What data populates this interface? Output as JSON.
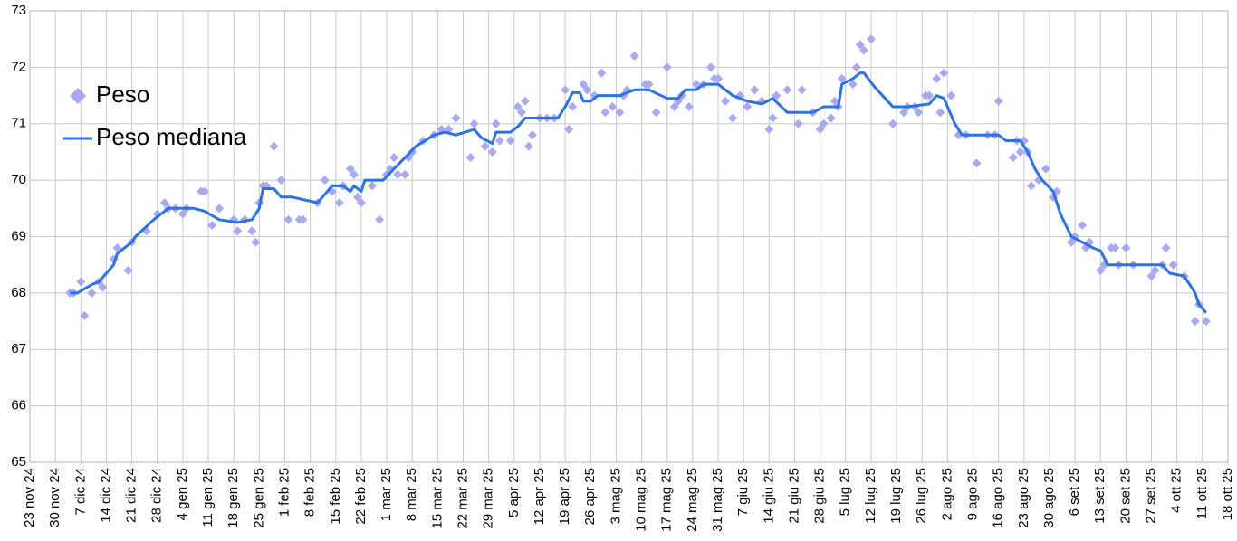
{
  "chart_data": {
    "type": "scatter",
    "xlim": [
      "2024-11-23",
      "2025-10-18"
    ],
    "ylim": [
      65,
      73
    ],
    "yticks": [
      65,
      66,
      67,
      68,
      69,
      70,
      71,
      72,
      73
    ],
    "xticks": [
      {
        "value": "2024-11-23",
        "label": "23 nov 24"
      },
      {
        "value": "2024-11-30",
        "label": "30 nov 24"
      },
      {
        "value": "2024-12-07",
        "label": "7 dic 24"
      },
      {
        "value": "2024-12-14",
        "label": "14 dic 24"
      },
      {
        "value": "2024-12-21",
        "label": "21 dic 24"
      },
      {
        "value": "2024-12-28",
        "label": "28 dic 24"
      },
      {
        "value": "2025-01-04",
        "label": "4 gen 25"
      },
      {
        "value": "2025-01-11",
        "label": "11 gen 25"
      },
      {
        "value": "2025-01-18",
        "label": "18 gen 25"
      },
      {
        "value": "2025-01-25",
        "label": "25 gen 25"
      },
      {
        "value": "2025-02-01",
        "label": "1 feb 25"
      },
      {
        "value": "2025-02-08",
        "label": "8 feb 25"
      },
      {
        "value": "2025-02-15",
        "label": "15 feb 25"
      },
      {
        "value": "2025-02-22",
        "label": "22 feb 25"
      },
      {
        "value": "2025-03-01",
        "label": "1 mar 25"
      },
      {
        "value": "2025-03-08",
        "label": "8 mar 25"
      },
      {
        "value": "2025-03-15",
        "label": "15 mar 25"
      },
      {
        "value": "2025-03-22",
        "label": "22 mar 25"
      },
      {
        "value": "2025-03-29",
        "label": "29 mar 25"
      },
      {
        "value": "2025-04-05",
        "label": "5 apr 25"
      },
      {
        "value": "2025-04-12",
        "label": "12 apr 25"
      },
      {
        "value": "2025-04-19",
        "label": "19 apr 25"
      },
      {
        "value": "2025-04-26",
        "label": "26 apr 25"
      },
      {
        "value": "2025-05-03",
        "label": "3 mag 25"
      },
      {
        "value": "2025-05-10",
        "label": "10 mag 25"
      },
      {
        "value": "2025-05-17",
        "label": "17 mag 25"
      },
      {
        "value": "2025-05-24",
        "label": "24 mag 25"
      },
      {
        "value": "2025-05-31",
        "label": "31 mag 25"
      },
      {
        "value": "2025-06-07",
        "label": "7 giu 25"
      },
      {
        "value": "2025-06-14",
        "label": "14 giu 25"
      },
      {
        "value": "2025-06-21",
        "label": "21 giu 25"
      },
      {
        "value": "2025-06-28",
        "label": "28 giu 25"
      },
      {
        "value": "2025-07-05",
        "label": "5 lug 25"
      },
      {
        "value": "2025-07-12",
        "label": "12 lug 25"
      },
      {
        "value": "2025-07-19",
        "label": "19 lug 25"
      },
      {
        "value": "2025-07-26",
        "label": "26 lug 25"
      },
      {
        "value": "2025-08-02",
        "label": "2 ago 25"
      },
      {
        "value": "2025-08-09",
        "label": "9 ago 25"
      },
      {
        "value": "2025-08-16",
        "label": "16 ago 25"
      },
      {
        "value": "2025-08-23",
        "label": "23 ago 25"
      },
      {
        "value": "2025-08-30",
        "label": "30 ago 25"
      },
      {
        "value": "2025-09-06",
        "label": "6 set 25"
      },
      {
        "value": "2025-09-13",
        "label": "13 set 25"
      },
      {
        "value": "2025-09-20",
        "label": "20 set 25"
      },
      {
        "value": "2025-09-27",
        "label": "27 set 25"
      },
      {
        "value": "2025-10-04",
        "label": "4 ott 25"
      },
      {
        "value": "2025-10-11",
        "label": "11 ott 25"
      },
      {
        "value": "2025-10-18",
        "label": "18 ott 25"
      }
    ],
    "grid": true,
    "legend": "left",
    "series": [
      {
        "name": "Peso",
        "type": "scatter",
        "color": "#a9a9f2",
        "x": [
          "2024-12-04",
          "2024-12-05",
          "2024-12-07",
          "2024-12-08",
          "2024-12-10",
          "2024-12-12",
          "2024-12-13",
          "2024-12-16",
          "2024-12-17",
          "2024-12-20",
          "2024-12-21",
          "2024-12-25",
          "2024-12-28",
          "2024-12-30",
          "2024-12-31",
          "2025-01-02",
          "2025-01-04",
          "2025-01-05",
          "2025-01-09",
          "2025-01-10",
          "2025-01-12",
          "2025-01-14",
          "2025-01-18",
          "2025-01-19",
          "2025-01-21",
          "2025-01-23",
          "2025-01-24",
          "2025-01-25",
          "2025-01-26",
          "2025-01-27",
          "2025-01-29",
          "2025-01-31",
          "2025-02-02",
          "2025-02-05",
          "2025-02-06",
          "2025-02-10",
          "2025-02-12",
          "2025-02-14",
          "2025-02-16",
          "2025-02-17",
          "2025-02-19",
          "2025-02-20",
          "2025-02-21",
          "2025-02-22",
          "2025-02-25",
          "2025-02-27",
          "2025-03-01",
          "2025-03-02",
          "2025-03-03",
          "2025-03-04",
          "2025-03-06",
          "2025-03-07",
          "2025-03-08",
          "2025-03-11",
          "2025-03-14",
          "2025-03-16",
          "2025-03-18",
          "2025-03-20",
          "2025-03-24",
          "2025-03-25",
          "2025-03-28",
          "2025-03-30",
          "2025-03-31",
          "2025-04-01",
          "2025-04-04",
          "2025-04-06",
          "2025-04-07",
          "2025-04-08",
          "2025-04-09",
          "2025-04-10",
          "2025-04-12",
          "2025-04-14",
          "2025-04-16",
          "2025-04-19",
          "2025-04-20",
          "2025-04-21",
          "2025-04-24",
          "2025-04-25",
          "2025-04-27",
          "2025-04-29",
          "2025-04-30",
          "2025-05-02",
          "2025-05-04",
          "2025-05-05",
          "2025-05-06",
          "2025-05-08",
          "2025-05-11",
          "2025-05-12",
          "2025-05-14",
          "2025-05-17",
          "2025-05-19",
          "2025-05-20",
          "2025-05-21",
          "2025-05-23",
          "2025-05-25",
          "2025-05-27",
          "2025-05-29",
          "2025-05-30",
          "2025-05-31",
          "2025-06-02",
          "2025-06-04",
          "2025-06-06",
          "2025-06-08",
          "2025-06-10",
          "2025-06-12",
          "2025-06-14",
          "2025-06-15",
          "2025-06-16",
          "2025-06-19",
          "2025-06-22",
          "2025-06-23",
          "2025-06-26",
          "2025-06-28",
          "2025-06-29",
          "2025-07-01",
          "2025-07-02",
          "2025-07-03",
          "2025-07-04",
          "2025-07-07",
          "2025-07-08",
          "2025-07-09",
          "2025-07-10",
          "2025-07-12",
          "2025-07-18",
          "2025-07-21",
          "2025-07-22",
          "2025-07-24",
          "2025-07-25",
          "2025-07-27",
          "2025-07-28",
          "2025-07-30",
          "2025-07-31",
          "2025-08-01",
          "2025-08-03",
          "2025-08-05",
          "2025-08-07",
          "2025-08-10",
          "2025-08-13",
          "2025-08-15",
          "2025-08-16",
          "2025-08-20",
          "2025-08-21",
          "2025-08-22",
          "2025-08-23",
          "2025-08-24",
          "2025-08-25",
          "2025-08-27",
          "2025-08-29",
          "2025-08-31",
          "2025-09-01",
          "2025-09-05",
          "2025-09-06",
          "2025-09-08",
          "2025-09-09",
          "2025-09-10",
          "2025-09-13",
          "2025-09-14",
          "2025-09-16",
          "2025-09-17",
          "2025-09-18",
          "2025-09-20",
          "2025-09-22",
          "2025-09-27",
          "2025-09-28",
          "2025-09-30",
          "2025-10-01",
          "2025-10-03",
          "2025-10-06",
          "2025-10-09",
          "2025-10-10",
          "2025-10-12"
        ],
        "values": [
          68.0,
          68.0,
          68.2,
          67.6,
          68.0,
          68.2,
          68.1,
          68.6,
          68.8,
          68.4,
          68.9,
          69.1,
          69.4,
          69.6,
          69.5,
          69.5,
          69.4,
          69.5,
          69.8,
          69.8,
          69.2,
          69.5,
          69.3,
          69.1,
          69.3,
          69.1,
          68.9,
          69.6,
          69.9,
          69.9,
          70.6,
          70.0,
          69.3,
          69.3,
          69.3,
          69.6,
          70.0,
          69.8,
          69.6,
          69.9,
          70.2,
          70.1,
          69.7,
          69.6,
          69.9,
          69.3,
          70.1,
          70.2,
          70.4,
          70.1,
          70.1,
          70.4,
          70.5,
          70.7,
          70.8,
          70.9,
          70.9,
          71.1,
          70.4,
          71.0,
          70.6,
          70.5,
          71.0,
          70.7,
          70.7,
          71.3,
          71.2,
          71.4,
          70.6,
          70.8,
          71.1,
          71.1,
          71.1,
          71.6,
          70.9,
          71.3,
          71.7,
          71.6,
          71.5,
          71.9,
          71.2,
          71.3,
          71.2,
          71.5,
          71.6,
          72.2,
          71.7,
          71.7,
          71.2,
          72.0,
          71.3,
          71.4,
          71.5,
          71.3,
          71.7,
          71.7,
          72.0,
          71.8,
          71.8,
          71.4,
          71.1,
          71.5,
          71.3,
          71.6,
          71.4,
          70.9,
          71.1,
          71.5,
          71.6,
          71.0,
          71.6,
          71.2,
          70.9,
          71.0,
          71.1,
          71.4,
          71.3,
          71.8,
          71.7,
          72.0,
          72.4,
          72.3,
          72.5,
          71.0,
          71.2,
          71.3,
          71.3,
          71.2,
          71.5,
          71.5,
          71.8,
          71.2,
          71.9,
          71.5,
          70.8,
          70.8,
          70.3,
          70.8,
          70.8,
          71.4,
          70.4,
          70.7,
          70.5,
          70.7,
          70.5,
          69.9,
          70.0,
          70.2,
          69.7,
          69.8,
          68.9,
          69.0,
          69.2,
          68.8,
          68.9,
          68.4,
          68.5,
          68.8,
          68.8,
          68.5,
          68.8,
          68.5,
          68.3,
          68.4,
          68.5,
          68.8,
          68.5,
          68.3,
          67.5,
          67.8,
          67.5
        ]
      },
      {
        "name": "Peso mediana",
        "type": "line",
        "color": "#2a72e8",
        "x": [
          "2024-12-04",
          "2024-12-06",
          "2024-12-10",
          "2024-12-12",
          "2024-12-16",
          "2024-12-17",
          "2024-12-21",
          "2024-12-22",
          "2024-12-27",
          "2024-12-30",
          "2024-12-31",
          "2025-01-07",
          "2025-01-10",
          "2025-01-14",
          "2025-01-19",
          "2025-01-23",
          "2025-01-25",
          "2025-01-26",
          "2025-01-29",
          "2025-01-31",
          "2025-02-03",
          "2025-02-10",
          "2025-02-14",
          "2025-02-17",
          "2025-02-19",
          "2025-02-20",
          "2025-02-22",
          "2025-02-23",
          "2025-02-28",
          "2025-03-03",
          "2025-03-06",
          "2025-03-09",
          "2025-03-14",
          "2025-03-17",
          "2025-03-20",
          "2025-03-25",
          "2025-03-27",
          "2025-03-30",
          "2025-03-31",
          "2025-04-04",
          "2025-04-06",
          "2025-04-08",
          "2025-04-17",
          "2025-04-19",
          "2025-04-21",
          "2025-04-23",
          "2025-04-24",
          "2025-04-26",
          "2025-04-28",
          "2025-05-04",
          "2025-05-08",
          "2025-05-12",
          "2025-05-17",
          "2025-05-20",
          "2025-05-22",
          "2025-05-25",
          "2025-05-27",
          "2025-05-31",
          "2025-06-04",
          "2025-06-08",
          "2025-06-12",
          "2025-06-15",
          "2025-06-19",
          "2025-06-26",
          "2025-06-29",
          "2025-07-03",
          "2025-07-04",
          "2025-07-07",
          "2025-07-09",
          "2025-07-10",
          "2025-07-13",
          "2025-07-18",
          "2025-07-22",
          "2025-07-28",
          "2025-07-30",
          "2025-08-01",
          "2025-08-04",
          "2025-08-06",
          "2025-08-16",
          "2025-08-18",
          "2025-08-22",
          "2025-08-24",
          "2025-08-26",
          "2025-08-28",
          "2025-08-31",
          "2025-09-02",
          "2025-09-05",
          "2025-09-08",
          "2025-09-11",
          "2025-09-13",
          "2025-09-15",
          "2025-09-30",
          "2025-10-02",
          "2025-10-06",
          "2025-10-09",
          "2025-10-10",
          "2025-10-12"
        ],
        "values": [
          68.0,
          68.0,
          68.15,
          68.2,
          68.5,
          68.7,
          68.9,
          69.0,
          69.3,
          69.45,
          69.5,
          69.5,
          69.45,
          69.3,
          69.25,
          69.3,
          69.5,
          69.85,
          69.85,
          69.7,
          69.7,
          69.6,
          69.9,
          69.9,
          69.8,
          69.9,
          69.8,
          70.0,
          70.0,
          70.2,
          70.4,
          70.6,
          70.8,
          70.85,
          70.8,
          70.9,
          70.75,
          70.65,
          70.85,
          70.85,
          70.95,
          71.1,
          71.1,
          71.3,
          71.55,
          71.55,
          71.4,
          71.4,
          71.5,
          71.5,
          71.6,
          71.6,
          71.45,
          71.45,
          71.6,
          71.6,
          71.7,
          71.7,
          71.5,
          71.4,
          71.35,
          71.45,
          71.2,
          71.2,
          71.3,
          71.3,
          71.7,
          71.8,
          71.9,
          71.9,
          71.65,
          71.3,
          71.3,
          71.35,
          71.5,
          71.45,
          71.0,
          70.8,
          70.8,
          70.7,
          70.7,
          70.5,
          70.2,
          70.0,
          69.8,
          69.4,
          69.0,
          68.9,
          68.8,
          68.75,
          68.5,
          68.5,
          68.35,
          68.3,
          68.0,
          67.8,
          67.65
        ]
      }
    ]
  }
}
